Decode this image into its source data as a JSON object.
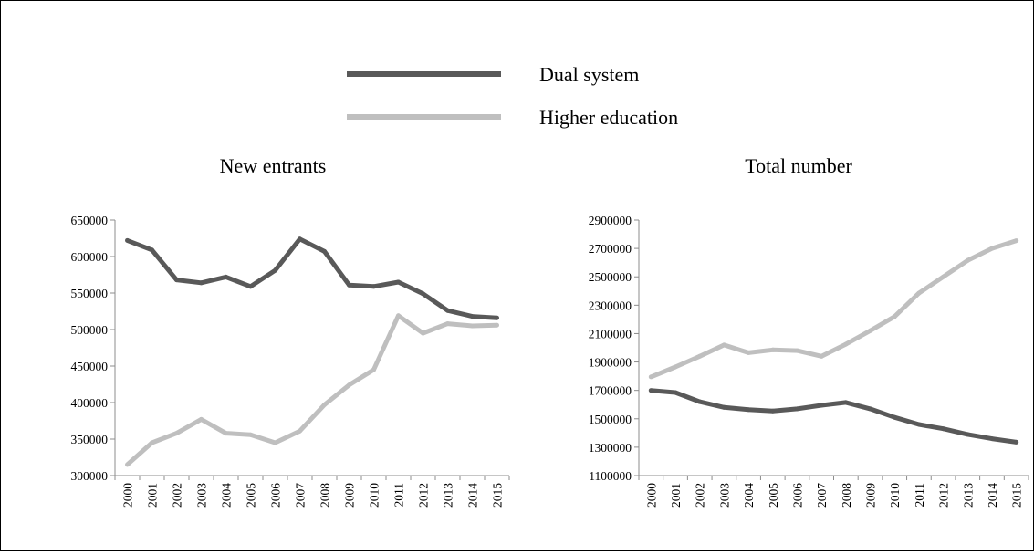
{
  "legend": {
    "items": [
      {
        "label": "Dual system",
        "color": "#595959"
      },
      {
        "label": "Higher education",
        "color": "#bfbfbf"
      }
    ]
  },
  "colors": {
    "axis": "#8c8c8c",
    "dual_system": "#595959",
    "higher_education": "#bfbfbf"
  },
  "chart_data": [
    {
      "type": "line",
      "title": "New entrants",
      "xlabel": "",
      "ylabel": "",
      "categories": [
        "2000",
        "2001",
        "2002",
        "2003",
        "2004",
        "2005",
        "2006",
        "2007",
        "2008",
        "2009",
        "2010",
        "2011",
        "2012",
        "2013",
        "2014",
        "2015"
      ],
      "ylim": [
        300000,
        650000
      ],
      "yticks": [
        300000,
        350000,
        400000,
        450000,
        500000,
        550000,
        600000,
        650000
      ],
      "grid": false,
      "legend": "top-center",
      "series": [
        {
          "name": "Dual system",
          "values": [
            622000,
            609000,
            568000,
            564000,
            572000,
            559000,
            581000,
            624000,
            607000,
            561000,
            559000,
            565000,
            549000,
            526000,
            518000,
            516000
          ]
        },
        {
          "name": "Higher education",
          "values": [
            315000,
            345000,
            358000,
            377000,
            358000,
            356000,
            345000,
            361000,
            397000,
            424000,
            445000,
            519000,
            495000,
            508000,
            505000,
            506000
          ]
        }
      ]
    },
    {
      "type": "line",
      "title": "Total number",
      "xlabel": "",
      "ylabel": "",
      "categories": [
        "2000",
        "2001",
        "2002",
        "2003",
        "2004",
        "2005",
        "2006",
        "2007",
        "2008",
        "2009",
        "2010",
        "2011",
        "2012",
        "2013",
        "2014",
        "2015"
      ],
      "ylim": [
        1100000,
        2900000
      ],
      "yticks": [
        1100000,
        1300000,
        1500000,
        1700000,
        1900000,
        2100000,
        2300000,
        2500000,
        2700000,
        2900000
      ],
      "grid": false,
      "legend": "top-center",
      "series": [
        {
          "name": "Dual system",
          "values": [
            1700000,
            1685000,
            1620000,
            1580000,
            1565000,
            1555000,
            1570000,
            1595000,
            1615000,
            1570000,
            1510000,
            1460000,
            1430000,
            1390000,
            1360000,
            1335000
          ]
        },
        {
          "name": "Higher education",
          "values": [
            1795000,
            1865000,
            1940000,
            2020000,
            1965000,
            1985000,
            1980000,
            1940000,
            2025000,
            2120000,
            2220000,
            2385000,
            2500000,
            2615000,
            2700000,
            2755000
          ]
        }
      ]
    }
  ]
}
